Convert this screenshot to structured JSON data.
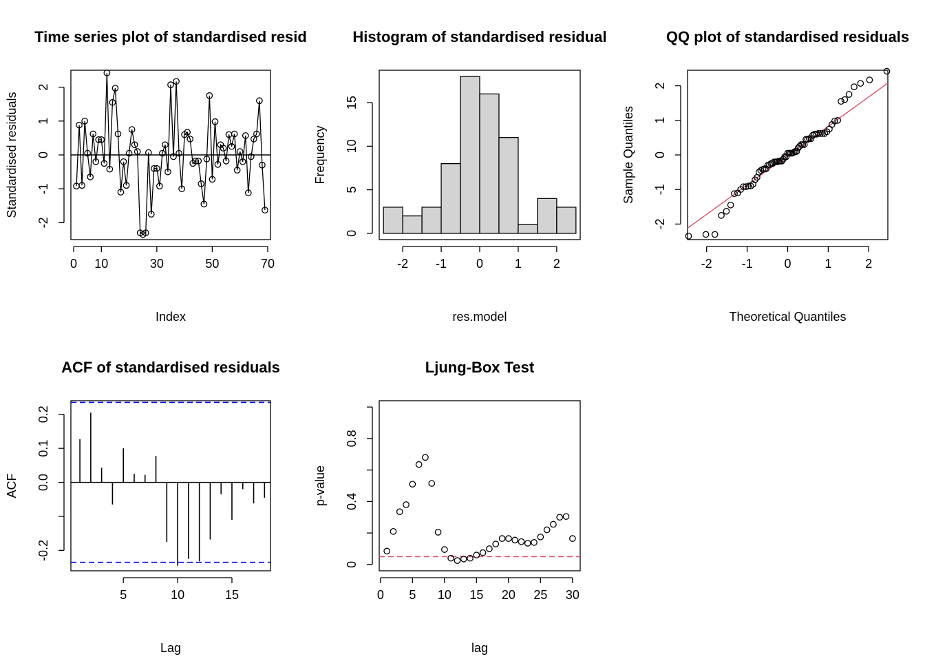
{
  "chart_data": [
    {
      "type": "line",
      "title": "Time series plot of standardised resid",
      "xlabel": "Index",
      "ylabel": "Standardised residuals",
      "xlim": [
        -1,
        71
      ],
      "ylim": [
        -2.5,
        2.5
      ],
      "xticks": [
        0,
        10,
        30,
        50,
        70
      ],
      "yticks": [
        -2,
        -1,
        0,
        1,
        2
      ],
      "hline": 0,
      "x": [
        1,
        2,
        3,
        4,
        5,
        6,
        7,
        8,
        9,
        10,
        11,
        12,
        13,
        14,
        15,
        16,
        17,
        18,
        19,
        20,
        21,
        22,
        23,
        24,
        25,
        26,
        27,
        28,
        29,
        30,
        31,
        32,
        33,
        34,
        35,
        36,
        37,
        38,
        39,
        40,
        41,
        42,
        43,
        44,
        45,
        46,
        47,
        48,
        49,
        50,
        51,
        52,
        53,
        54,
        55,
        56,
        57,
        58,
        59,
        60,
        61,
        62,
        63,
        64,
        65,
        66,
        67,
        68,
        69
      ],
      "values": [
        -0.92,
        0.88,
        -0.9,
        1.0,
        0.05,
        -0.65,
        0.62,
        -0.2,
        0.45,
        0.45,
        -0.25,
        2.42,
        -0.42,
        1.55,
        1.97,
        0.62,
        -1.1,
        -0.2,
        -0.9,
        0.05,
        0.75,
        0.3,
        0.1,
        -2.3,
        -2.35,
        -2.3,
        0.07,
        -1.75,
        -0.4,
        -0.4,
        -0.92,
        0.05,
        0.3,
        -0.5,
        2.07,
        -0.05,
        2.17,
        0.05,
        -1.0,
        0.6,
        0.67,
        0.47,
        -0.25,
        -0.18,
        -0.18,
        -0.85,
        -1.45,
        -0.12,
        1.75,
        -0.72,
        0.98,
        -0.28,
        0.3,
        0.2,
        -0.18,
        0.6,
        0.25,
        0.62,
        -0.45,
        0.1,
        -0.2,
        0.57,
        -1.12,
        -0.05,
        0.47,
        0.62,
        1.6,
        -0.3,
        -1.63
      ]
    },
    {
      "type": "bar",
      "title": "Histogram of standardised residual",
      "xlabel": "res.model",
      "ylabel": "Frequency",
      "bin_edges": [
        -2.5,
        -2.0,
        -1.5,
        -1.0,
        -0.5,
        0.0,
        0.5,
        1.0,
        1.5,
        2.0,
        2.5
      ],
      "values": [
        3,
        2,
        3,
        8,
        18,
        16,
        11,
        1,
        4,
        3
      ],
      "xlim": [
        -2.5,
        2.5
      ],
      "ylim": [
        0,
        18
      ],
      "xticks": [
        -2,
        -1,
        0,
        1,
        2
      ],
      "yticks": [
        0,
        5,
        10,
        15
      ],
      "bar_color": "#d3d3d3"
    },
    {
      "type": "scatter",
      "title": "QQ plot of standardised residuals",
      "xlabel": "Theoretical Quantiles",
      "ylabel": "Sample Quantiles",
      "xlim": [
        -2.47,
        2.47
      ],
      "ylim": [
        -2.45,
        2.45
      ],
      "xticks": [
        -2,
        -1,
        0,
        1,
        2
      ],
      "yticks": [
        -2,
        -1,
        0,
        1,
        2
      ],
      "reference_line": {
        "slope": 0.85,
        "intercept": -0.02,
        "color": "#df536b"
      }
    },
    {
      "type": "bar",
      "title": "ACF of standardised residuals",
      "xlabel": "Lag",
      "ylabel": "ACF",
      "lags": [
        1,
        2,
        3,
        4,
        5,
        6,
        7,
        8,
        9,
        10,
        11,
        12,
        13,
        14,
        15,
        16,
        17,
        18
      ],
      "values": [
        0.127,
        0.205,
        0.043,
        -0.065,
        0.1,
        0.025,
        0.022,
        0.078,
        -0.175,
        -0.245,
        -0.225,
        -0.232,
        -0.168,
        -0.035,
        -0.11,
        -0.02,
        -0.062,
        -0.045
      ],
      "xlim": [
        0.17,
        18.55
      ],
      "ylim": [
        -0.26,
        0.24
      ],
      "xticks": [
        5,
        10,
        15
      ],
      "yticks": [
        -0.2,
        -0.1,
        0.0,
        0.1,
        0.2
      ],
      "ytick_labels": [
        "-0.2",
        "",
        "0.0",
        "0.1",
        "0.2"
      ],
      "conf_bound": 0.235,
      "conf_color": "#0000ff"
    },
    {
      "type": "scatter",
      "title": "Ljung-Box Test",
      "xlabel": "lag",
      "ylabel": "p-value",
      "x": [
        1,
        2,
        3,
        4,
        5,
        6,
        7,
        8,
        9,
        10,
        11,
        12,
        13,
        14,
        15,
        16,
        17,
        18,
        19,
        20,
        21,
        22,
        23,
        24,
        25,
        26,
        27,
        28,
        29,
        30
      ],
      "values": [
        0.085,
        0.21,
        0.335,
        0.38,
        0.51,
        0.635,
        0.68,
        0.515,
        0.205,
        0.095,
        0.04,
        0.025,
        0.035,
        0.04,
        0.06,
        0.075,
        0.1,
        0.13,
        0.165,
        0.165,
        0.155,
        0.145,
        0.135,
        0.14,
        0.175,
        0.22,
        0.255,
        0.3,
        0.305,
        0.165
      ],
      "xlim": [
        -0.2,
        31.2
      ],
      "ylim": [
        -0.04,
        1.04
      ],
      "xticks": [
        0,
        5,
        10,
        15,
        20,
        25,
        30
      ],
      "yticks": [
        0.0,
        0.4,
        0.8
      ],
      "minor_yticks": [
        0.2,
        0.6,
        1.0
      ],
      "significance": 0.05,
      "significance_color": "#df536b"
    }
  ]
}
